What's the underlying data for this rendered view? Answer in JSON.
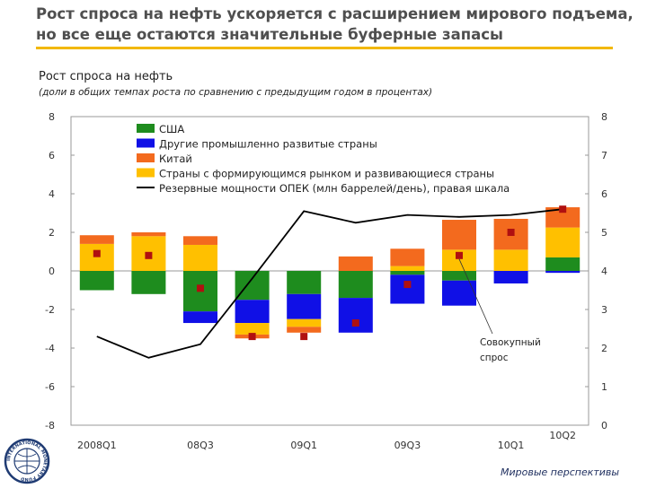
{
  "slide": {
    "title_line1": "Рост спроса на нефть ускоряется с расширением мирового подъема,",
    "title_line2": "но все еще остаются значительные буферные запасы",
    "footer": "Мировые перспективы",
    "logo_text": "INTERNATIONAL MONETARY FUND"
  },
  "chart_data": {
    "type": "bar",
    "title": "Рост спроса на нефть",
    "subtitle": "(доли в общих темпах роста по сравнению с предыдущим годом в процентах)",
    "categories": [
      "2008Q1",
      "2008Q2",
      "2008Q3",
      "2008Q4",
      "2009Q1",
      "2009Q2",
      "2009Q3",
      "2009Q4",
      "2010Q1",
      "2010Q2"
    ],
    "tick_labels": [
      {
        "index": 0,
        "label": "2008Q1"
      },
      {
        "index": 2,
        "label": "08Q3"
      },
      {
        "index": 4,
        "label": "09Q1"
      },
      {
        "index": 6,
        "label": "09Q3"
      },
      {
        "index": 8,
        "label": "10Q1"
      },
      {
        "index": 9,
        "label": "10Q2"
      }
    ],
    "ylim": [
      -8,
      8
    ],
    "yticks": [
      -8,
      -6,
      -4,
      -2,
      0,
      2,
      4,
      6,
      8
    ],
    "y2lim": [
      0,
      8
    ],
    "y2ticks": [
      0,
      1,
      2,
      3,
      4,
      5,
      6,
      7,
      8
    ],
    "stack_order": [
      "usa",
      "other_adv",
      "emerging",
      "china"
    ],
    "series": [
      {
        "key": "usa",
        "name": "США",
        "color": "#1e8c1e",
        "values": [
          -1.0,
          -1.2,
          -2.1,
          -1.5,
          -1.2,
          -1.4,
          -0.2,
          -0.5,
          0,
          0.7
        ]
      },
      {
        "key": "other_adv",
        "name": "Другие промышленно развитые страны",
        "color": "#1010e6",
        "values": [
          0,
          0,
          -0.6,
          -1.2,
          -1.3,
          -1.8,
          -1.5,
          -1.3,
          -0.65,
          -0.1
        ]
      },
      {
        "key": "china",
        "name": "Китай",
        "color": "#f36a1e",
        "values": [
          0.45,
          0.2,
          0.45,
          -0.2,
          -0.3,
          0.75,
          0.9,
          1.55,
          1.6,
          1.05
        ]
      },
      {
        "key": "emerging",
        "name": "Страны с формирующимся рынком и развивающиеся страны",
        "color": "#ffc000",
        "values": [
          1.4,
          1.8,
          1.35,
          -0.6,
          -0.4,
          0,
          0.25,
          1.1,
          1.1,
          1.55
        ]
      }
    ],
    "total_demand": {
      "name": "Совокупный спрос",
      "color": "#b01010",
      "values": [
        0.9,
        0.8,
        -0.9,
        -3.4,
        -3.4,
        -2.7,
        -0.7,
        0.8,
        2.0,
        3.2
      ]
    },
    "opec_spare_capacity": {
      "name": "Резервные мощности ОПЕК (млн баррелей/день), правая шкала",
      "axis": "right",
      "color": "#000000",
      "x": [
        0,
        1,
        2,
        3,
        4,
        5,
        6,
        7,
        8,
        9
      ],
      "values": [
        2.3,
        1.75,
        2.1,
        3.8,
        5.55,
        5.25,
        5.45,
        5.4,
        5.45,
        5.6
      ]
    },
    "annotation": {
      "line1": "Совокупный",
      "line2": "спрос",
      "points_to_index": 7
    },
    "legend_position": "top-left"
  }
}
